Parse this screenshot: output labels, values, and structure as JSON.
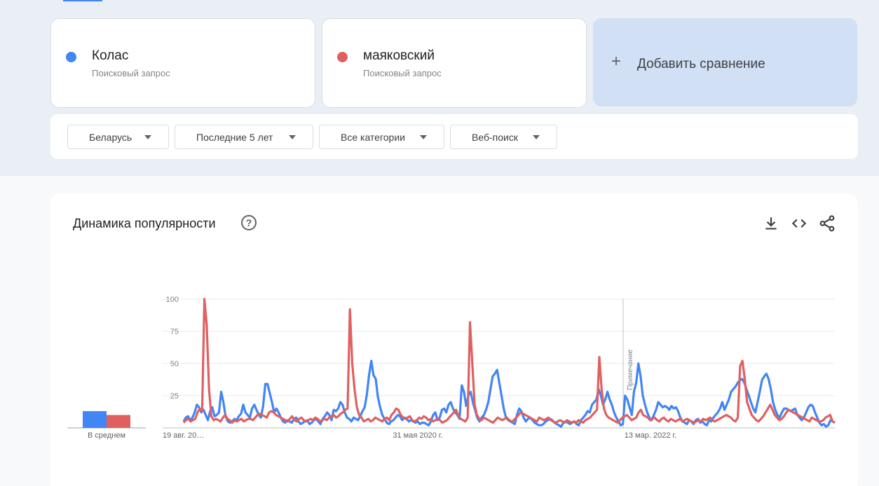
{
  "terms": [
    {
      "name": "Колас",
      "sub": "Поисковый запрос",
      "color": "#4285f4"
    },
    {
      "name": "маяковский",
      "sub": "Поисковый запрос",
      "color": "#e06060"
    }
  ],
  "add_compare": {
    "icon": "plus-icon",
    "label": "Добавить сравнение"
  },
  "filters": {
    "region": "Беларусь",
    "period": "Последние 5 лет",
    "category": "Все категории",
    "search_type": "Веб-поиск"
  },
  "chart_section": {
    "title": "Динамика популярности",
    "help_icon": "question-circle-icon",
    "tools": [
      "download-icon",
      "embed-code-icon",
      "share-icon"
    ]
  },
  "chart_data": {
    "type": "line",
    "ylim": [
      0,
      100
    ],
    "yticks": [
      "100",
      "75",
      "50",
      "25"
    ],
    "x_tick_labels": [
      "19 авг. 20…",
      "31 мая 2020 г.",
      "13 мар. 2022 г."
    ],
    "note_label": "Примечание",
    "average_label": "В среднем",
    "averages": [
      13,
      10
    ],
    "series": [
      {
        "name": "Колас",
        "color": "#4285f4",
        "values": [
          5,
          8,
          9,
          6,
          8,
          12,
          18,
          16,
          12,
          14,
          10,
          6,
          13,
          16,
          9,
          10,
          12,
          28,
          20,
          9,
          5,
          4,
          5,
          7,
          6,
          9,
          11,
          18,
          12,
          10,
          8,
          15,
          18,
          14,
          10,
          8,
          17,
          34,
          34,
          27,
          20,
          12,
          15,
          12,
          8,
          5,
          4,
          6,
          5,
          4,
          7,
          8,
          5,
          3,
          4,
          5,
          6,
          3,
          4,
          6,
          7,
          5,
          3,
          7,
          9,
          12,
          10,
          6,
          14,
          13,
          15,
          20,
          18,
          12,
          8,
          7,
          5,
          8,
          7,
          6,
          9,
          13,
          16,
          26,
          41,
          52,
          41,
          38,
          24,
          16,
          10,
          7,
          4,
          3,
          5,
          6,
          8,
          10,
          9,
          6,
          8,
          7,
          5,
          6,
          5,
          4,
          5,
          3,
          4,
          4,
          3,
          2,
          5,
          10,
          12,
          6,
          8,
          14,
          15,
          12,
          18,
          20,
          15,
          12,
          10,
          7,
          33,
          28,
          17,
          25,
          28,
          20,
          14,
          8,
          5,
          8,
          10,
          14,
          20,
          30,
          40,
          42,
          45,
          35,
          25,
          15,
          8,
          6,
          5,
          4,
          3,
          10,
          15,
          13,
          8,
          5,
          7,
          8,
          6,
          4,
          3,
          2,
          2,
          3,
          5,
          6,
          7,
          6,
          4,
          3,
          2,
          1,
          4,
          5,
          4,
          3,
          4,
          5,
          3,
          2,
          6,
          8,
          10,
          13,
          12,
          18,
          20,
          22,
          30,
          25,
          18,
          22,
          28,
          22,
          18,
          12,
          8,
          5,
          2,
          3,
          25,
          22,
          16,
          10,
          28,
          35,
          50,
          40,
          25,
          18,
          12,
          8,
          6,
          10,
          14,
          20,
          18,
          16,
          17,
          16,
          14,
          17,
          15,
          16,
          13,
          8,
          5,
          4,
          3,
          6,
          5,
          3,
          6,
          7,
          4,
          5,
          3,
          2,
          6,
          5,
          8,
          10,
          12,
          15,
          20,
          14,
          18,
          22,
          28,
          30,
          32,
          35,
          37,
          38,
          35,
          30,
          25,
          20,
          15,
          12,
          20,
          28,
          37,
          40,
          42,
          38,
          30,
          20,
          14,
          10,
          8,
          12,
          15,
          15,
          14,
          13,
          14,
          15,
          10,
          8,
          6,
          8,
          12,
          16,
          18,
          17,
          12,
          8,
          4,
          2,
          3,
          1,
          2,
          6,
          5,
          4
        ]
      },
      {
        "name": "маяковский",
        "color": "#e06060",
        "values": [
          4,
          6,
          7,
          5,
          6,
          7,
          12,
          15,
          13,
          100,
          80,
          30,
          9,
          6,
          7,
          6,
          5,
          8,
          10,
          7,
          6,
          4,
          6,
          5,
          6,
          7,
          5,
          6,
          7,
          7,
          6,
          8,
          10,
          11,
          10,
          9,
          8,
          12,
          13,
          12,
          10,
          9,
          8,
          7,
          6,
          5,
          7,
          9,
          6,
          5,
          7,
          8,
          6,
          5,
          6,
          7,
          6,
          8,
          7,
          5,
          6,
          7,
          6,
          8,
          9,
          10,
          8,
          9,
          11,
          12,
          14,
          15,
          92,
          50,
          30,
          16,
          10,
          8,
          5,
          6,
          7,
          5,
          6,
          8,
          7,
          6,
          5,
          7,
          8,
          6,
          10,
          12,
          15,
          14,
          10,
          8,
          7,
          8,
          9,
          6,
          5,
          6,
          8,
          7,
          9,
          8,
          6,
          7,
          5,
          6,
          7,
          6,
          4,
          5,
          6,
          8,
          10,
          12,
          14,
          9,
          7,
          6,
          5,
          8,
          82,
          50,
          18,
          10,
          7,
          6,
          8,
          7,
          6,
          5,
          4,
          6,
          8,
          7,
          6,
          7,
          8,
          6,
          5,
          6,
          8,
          10,
          12,
          11,
          10,
          9,
          8,
          7,
          6,
          5,
          8,
          7,
          6,
          7,
          8,
          6,
          5,
          4,
          5,
          6,
          5,
          4,
          6,
          5,
          4,
          5,
          4,
          6,
          5,
          4,
          6,
          7,
          8,
          10,
          12,
          14,
          55,
          30,
          15,
          10,
          8,
          7,
          6,
          5,
          4,
          6,
          8,
          9,
          10,
          8,
          6,
          7,
          8,
          12,
          14,
          10,
          9,
          8,
          6,
          7,
          8,
          6,
          5,
          7,
          8,
          6,
          5,
          7,
          6,
          5,
          6,
          7,
          5,
          6,
          7,
          6,
          5,
          4,
          5,
          6,
          5,
          7,
          6,
          7,
          8,
          6,
          5,
          6,
          7,
          8,
          9,
          10,
          9,
          8,
          6,
          5,
          8,
          48,
          52,
          38,
          20,
          15,
          10,
          8,
          6,
          5,
          7,
          9,
          12,
          15,
          18,
          14,
          10,
          8,
          6,
          7,
          9,
          12,
          14,
          13,
          12,
          11,
          10,
          9,
          8,
          7,
          6,
          5,
          8,
          7,
          6,
          5,
          5,
          6,
          8,
          9,
          10,
          5,
          4
        ]
      }
    ]
  }
}
